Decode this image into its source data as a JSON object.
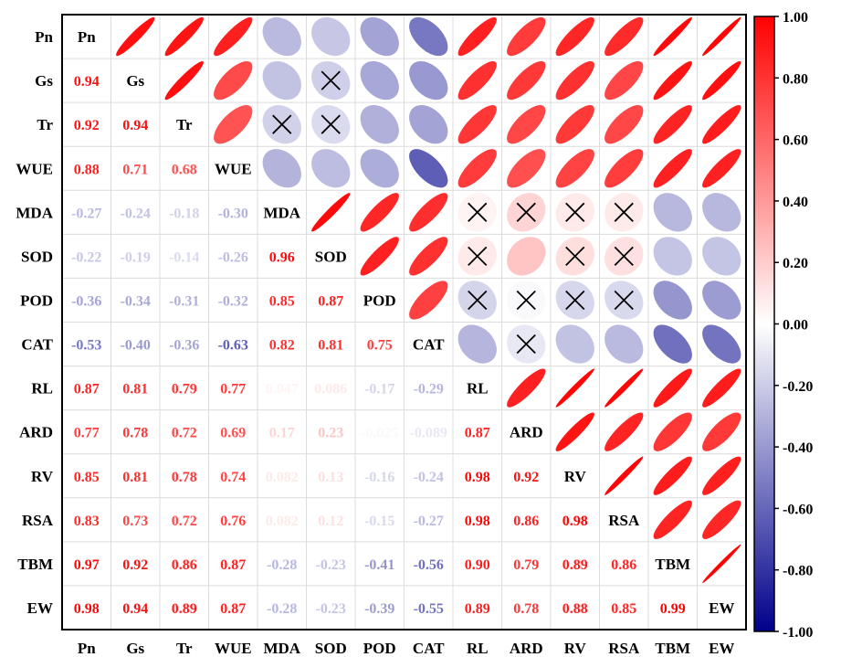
{
  "chart_data": {
    "type": "heatmap",
    "variables": [
      "Pn",
      "Gs",
      "Tr",
      "WUE",
      "MDA",
      "SOD",
      "POD",
      "CAT",
      "RL",
      "ARD",
      "RV",
      "RSA",
      "TBM",
      "EW"
    ],
    "lower_labels": [
      [],
      [
        "0.94"
      ],
      [
        "0.92",
        "0.94"
      ],
      [
        "0.88",
        "0.71",
        "0.68"
      ],
      [
        "-0.27",
        "-0.24",
        "-0.18",
        "-0.30"
      ],
      [
        "-0.22",
        "-0.19",
        "-0.14",
        "-0.26",
        "0.96"
      ],
      [
        "-0.36",
        "-0.34",
        "-0.31",
        "-0.32",
        "0.85",
        "0.87"
      ],
      [
        "-0.53",
        "-0.40",
        "-0.36",
        "-0.63",
        "0.82",
        "0.81",
        "0.75"
      ],
      [
        "0.87",
        "0.81",
        "0.79",
        "0.77",
        "0.047",
        "0.086",
        "-0.17",
        "-0.29"
      ],
      [
        "0.77",
        "0.78",
        "0.72",
        "0.69",
        "0.17",
        "0.23",
        "-0.025",
        "-0.089",
        "0.87"
      ],
      [
        "0.85",
        "0.81",
        "0.78",
        "0.74",
        "0.082",
        "0.13",
        "-0.16",
        "-0.24",
        "0.98",
        "0.92"
      ],
      [
        "0.83",
        "0.73",
        "0.72",
        "0.76",
        "0.082",
        "0.12",
        "-0.15",
        "-0.27",
        "0.98",
        "0.86",
        "0.98"
      ],
      [
        "0.97",
        "0.92",
        "0.86",
        "0.87",
        "-0.28",
        "-0.23",
        "-0.41",
        "-0.56",
        "0.90",
        "0.79",
        "0.89",
        "0.86"
      ],
      [
        "0.98",
        "0.94",
        "0.89",
        "0.87",
        "-0.28",
        "-0.23",
        "-0.39",
        "-0.55",
        "0.89",
        "0.78",
        "0.88",
        "0.85",
        "0.99"
      ]
    ],
    "nonsignificant_pairs": [
      [
        "Gs",
        "SOD"
      ],
      [
        "Tr",
        "MDA"
      ],
      [
        "Tr",
        "SOD"
      ],
      [
        "MDA",
        "RL"
      ],
      [
        "MDA",
        "ARD"
      ],
      [
        "MDA",
        "RV"
      ],
      [
        "MDA",
        "RSA"
      ],
      [
        "SOD",
        "RL"
      ],
      [
        "SOD",
        "RV"
      ],
      [
        "SOD",
        "RSA"
      ],
      [
        "POD",
        "RL"
      ],
      [
        "POD",
        "ARD"
      ],
      [
        "POD",
        "RV"
      ],
      [
        "POD",
        "RSA"
      ],
      [
        "CAT",
        "ARD"
      ]
    ],
    "colorbar": {
      "ticks": [
        "1.00",
        "0.80",
        "0.60",
        "0.40",
        "0.20",
        "0.00",
        "-0.20",
        "-0.40",
        "-0.60",
        "-0.80",
        "-1.00"
      ],
      "min": -1,
      "max": 1,
      "color_high": "#ff0000",
      "color_mid": "#ffffff",
      "color_low": "#00008b"
    },
    "upper_triangle": "ellipse",
    "lower_triangle": "number",
    "grid": true
  }
}
